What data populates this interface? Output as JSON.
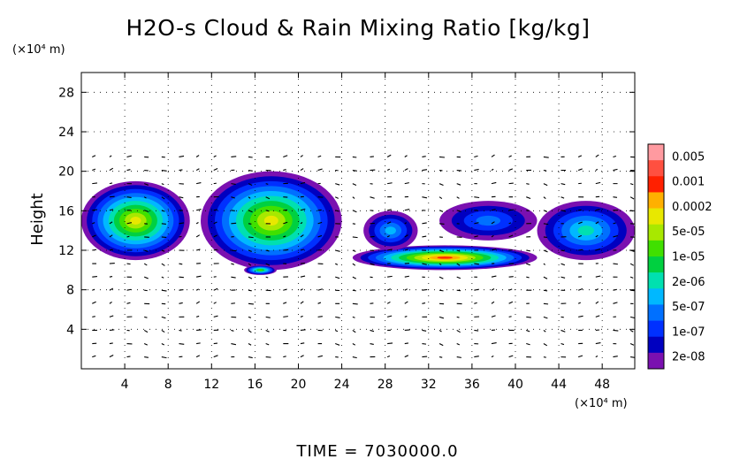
{
  "chart_data": {
    "type": "heatmap",
    "title": "H2O-s Cloud & Rain Mixing Ratio [kg/kg]",
    "ylabel": "Height",
    "y_unit": "(×10⁴ m)",
    "x_unit": "(×10⁴ m)",
    "xlim": [
      0,
      51
    ],
    "ylim": [
      0,
      30
    ],
    "xticks": [
      "4",
      "8",
      "12",
      "16",
      "20",
      "24",
      "28",
      "32",
      "36",
      "40",
      "44",
      "48"
    ],
    "xtick_values": [
      4,
      8,
      12,
      16,
      20,
      24,
      28,
      32,
      36,
      40,
      44,
      48
    ],
    "yticks": [
      "4",
      "8",
      "12",
      "16",
      "20",
      "24",
      "28"
    ],
    "ytick_values": [
      4,
      8,
      12,
      16,
      20,
      24,
      28
    ],
    "grid": true,
    "overlay": "wind vectors",
    "colorbar": {
      "placement": "right",
      "labels": [
        "0.005",
        "0.001",
        "0.0002",
        "5e-05",
        "1e-05",
        "2e-06",
        "5e-07",
        "1e-07",
        "2e-08"
      ],
      "colors": [
        "#ff9aa0",
        "#ff5040",
        "#ff2000",
        "#ffb000",
        "#e8e800",
        "#a8e800",
        "#40e000",
        "#00d040",
        "#00e0b0",
        "#00b8ff",
        "#0070ff",
        "#0030ff",
        "#0000c0",
        "#7a10b0"
      ]
    },
    "regions": [
      {
        "x": [
          0,
          10
        ],
        "y": [
          11,
          19
        ],
        "core_level": 4
      },
      {
        "x": [
          11,
          24
        ],
        "y": [
          10,
          20
        ],
        "core_level": 4
      },
      {
        "x": [
          15,
          18
        ],
        "y": [
          9.5,
          10.5
        ],
        "core_level": 6
      },
      {
        "x": [
          25,
          42
        ],
        "y": [
          10,
          12.5
        ],
        "core_level": 2
      },
      {
        "x": [
          26,
          31
        ],
        "y": [
          12,
          16
        ],
        "core_level": 9
      },
      {
        "x": [
          33,
          42
        ],
        "y": [
          13,
          17
        ],
        "core_level": 10
      },
      {
        "x": [
          42,
          51
        ],
        "y": [
          11,
          17
        ],
        "core_level": 8
      }
    ]
  },
  "footer": {
    "time_label": "TIME  =  7030000.0"
  }
}
